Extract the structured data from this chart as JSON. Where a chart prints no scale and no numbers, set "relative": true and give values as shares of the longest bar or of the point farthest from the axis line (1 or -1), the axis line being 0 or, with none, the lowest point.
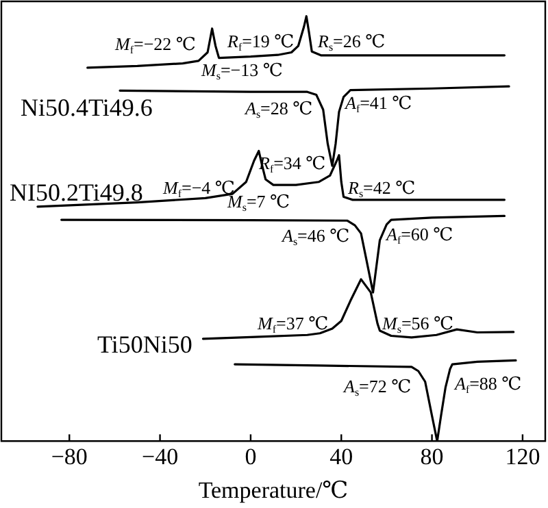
{
  "chart_data": {
    "type": "line",
    "xlabel": "Temperature/℃",
    "relative": true,
    "xlim": [
      -110,
      130
    ],
    "xticks": [
      -80,
      -40,
      0,
      40,
      80,
      120
    ],
    "grid": false,
    "legend": false,
    "marker": "none",
    "line_style": "solid",
    "series": [
      {
        "color": "#000000",
        "x": [
          -72,
          -50,
          -30,
          -23,
          -19,
          -17,
          -15.5,
          -14,
          0,
          12,
          18,
          21,
          23.5,
          24.6,
          25.8,
          27,
          31,
          60,
          112
        ],
        "values": [
          0.879,
          0.883,
          0.889,
          0.895,
          0.915,
          0.971,
          0.93,
          0.902,
          0.905,
          0.909,
          0.915,
          0.93,
          0.975,
          1.0,
          0.96,
          0.917,
          0.908,
          0.908,
          0.908
        ]
      },
      {
        "color": "#000000",
        "x": [
          -57.7,
          0,
          25,
          29,
          32,
          34,
          36,
          37.5,
          39,
          41,
          44,
          80,
          114
        ],
        "values": [
          0.825,
          0.822,
          0.822,
          0.815,
          0.78,
          0.7,
          0.648,
          0.7,
          0.775,
          0.81,
          0.826,
          0.83,
          0.835
        ]
      },
      {
        "color": "#000000",
        "x": [
          -94,
          -50,
          -20,
          -8,
          -2,
          1.5,
          3.6,
          5,
          6.6,
          10,
          20,
          30,
          35,
          38,
          39,
          40,
          41,
          45,
          112
        ],
        "values": [
          0.552,
          0.562,
          0.572,
          0.582,
          0.61,
          0.66,
          0.683,
          0.65,
          0.616,
          0.603,
          0.603,
          0.61,
          0.625,
          0.66,
          0.673,
          0.61,
          0.575,
          0.568,
          0.568
        ]
      },
      {
        "color": "#000000",
        "x": [
          -83.5,
          0,
          42.7,
          46,
          48.7,
          51,
          54,
          57,
          60,
          62,
          80,
          112
        ],
        "values": [
          0.521,
          0.52,
          0.519,
          0.508,
          0.489,
          0.429,
          0.35,
          0.473,
          0.51,
          0.521,
          0.526,
          0.53
        ]
      },
      {
        "color": "#000000",
        "x": [
          -21,
          0,
          25,
          30.6,
          36,
          40,
          44,
          48.7,
          53,
          56,
          57,
          62,
          71,
          82,
          91,
          100,
          116
        ],
        "values": [
          0.241,
          0.245,
          0.25,
          0.254,
          0.265,
          0.283,
          0.33,
          0.381,
          0.35,
          0.276,
          0.26,
          0.248,
          0.244,
          0.25,
          0.263,
          0.256,
          0.257
        ]
      },
      {
        "color": "#000000",
        "x": [
          -7,
          30,
          71,
          74,
          77,
          80,
          82.3,
          84,
          86,
          88,
          89,
          100,
          117
        ],
        "values": [
          0.181,
          0.178,
          0.175,
          0.165,
          0.14,
          0.06,
          0.0,
          0.06,
          0.127,
          0.17,
          0.181,
          0.187,
          0.19
        ]
      }
    ],
    "annotations": [
      "M$_{f}$=−22 ℃",
      "R$_{f}$=19 ℃",
      "R$_{s}$=26 ℃",
      "M$_{s}$=−13 ℃",
      "A$_{s}$=28 ℃",
      "A$_{f}$=41 ℃",
      "M$_{f}$=−4 ℃",
      "R$_{f}$=34 ℃",
      "R$_{s}$=42 ℃",
      "M$_{s}$=7 ℃",
      "A$_{s}$=46 ℃",
      "A$_{f}$=60 ℃",
      "M$_{f}$=37 ℃",
      "M$_{s}$=56 ℃",
      "A$_{s}$=72 ℃",
      "A$_{f}$=88 ℃",
      "Ni50.4Ti49.6",
      "NI50.2Ti49.8",
      "Ti50Ni50"
    ]
  }
}
